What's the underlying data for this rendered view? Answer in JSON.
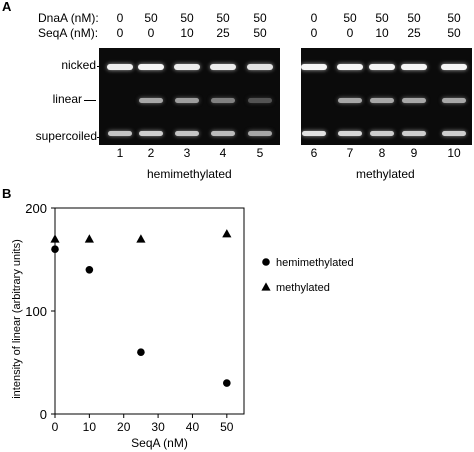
{
  "panel_a": {
    "letter": "A",
    "conditions": {
      "dnaa_label": "DnaA (nM):",
      "seqa_label": "SeqA (nM):",
      "dnaa_values": [
        "0",
        "50",
        "50",
        "50",
        "50",
        "0",
        "50",
        "50",
        "50",
        "50"
      ],
      "seqa_values": [
        "0",
        "0",
        "10",
        "25",
        "50",
        "0",
        "0",
        "10",
        "25",
        "50"
      ]
    },
    "band_labels": {
      "nicked": "nicked",
      "linear": "linear",
      "supercoiled": "supercoiled"
    },
    "lane_numbers": [
      "1",
      "2",
      "3",
      "4",
      "5",
      "6",
      "7",
      "8",
      "9",
      "10"
    ],
    "group_labels": {
      "left": "hemimethylated",
      "right": "methylated"
    },
    "band_intensity": {
      "nicked": [
        0.92,
        0.95,
        0.9,
        0.9,
        0.85,
        0.95,
        0.95,
        0.95,
        0.95,
        0.95
      ],
      "linear": [
        0.0,
        0.55,
        0.5,
        0.35,
        0.12,
        0.0,
        0.55,
        0.55,
        0.55,
        0.55
      ],
      "supercoiled": [
        0.7,
        0.75,
        0.7,
        0.65,
        0.55,
        0.85,
        0.8,
        0.75,
        0.75,
        0.75
      ]
    }
  },
  "panel_b": {
    "letter": "B",
    "chart_data": {
      "type": "scatter",
      "xlabel": "SeqA (nM)",
      "ylabel": "intensity of linear (arbitrary units)",
      "xlim": [
        0,
        55
      ],
      "ylim": [
        0,
        200
      ],
      "x_ticks": [
        0,
        10,
        20,
        30,
        40,
        50
      ],
      "y_ticks": [
        0,
        100,
        200
      ],
      "grid": false,
      "legend_position": "right",
      "series": [
        {
          "name": "hemimethylated",
          "marker": "circle",
          "points": [
            [
              0,
              160
            ],
            [
              10,
              140
            ],
            [
              25,
              60
            ],
            [
              50,
              30
            ]
          ]
        },
        {
          "name": "methylated",
          "marker": "triangle",
          "points": [
            [
              0,
              170
            ],
            [
              10,
              170
            ],
            [
              25,
              170
            ],
            [
              50,
              175
            ]
          ]
        }
      ]
    }
  }
}
